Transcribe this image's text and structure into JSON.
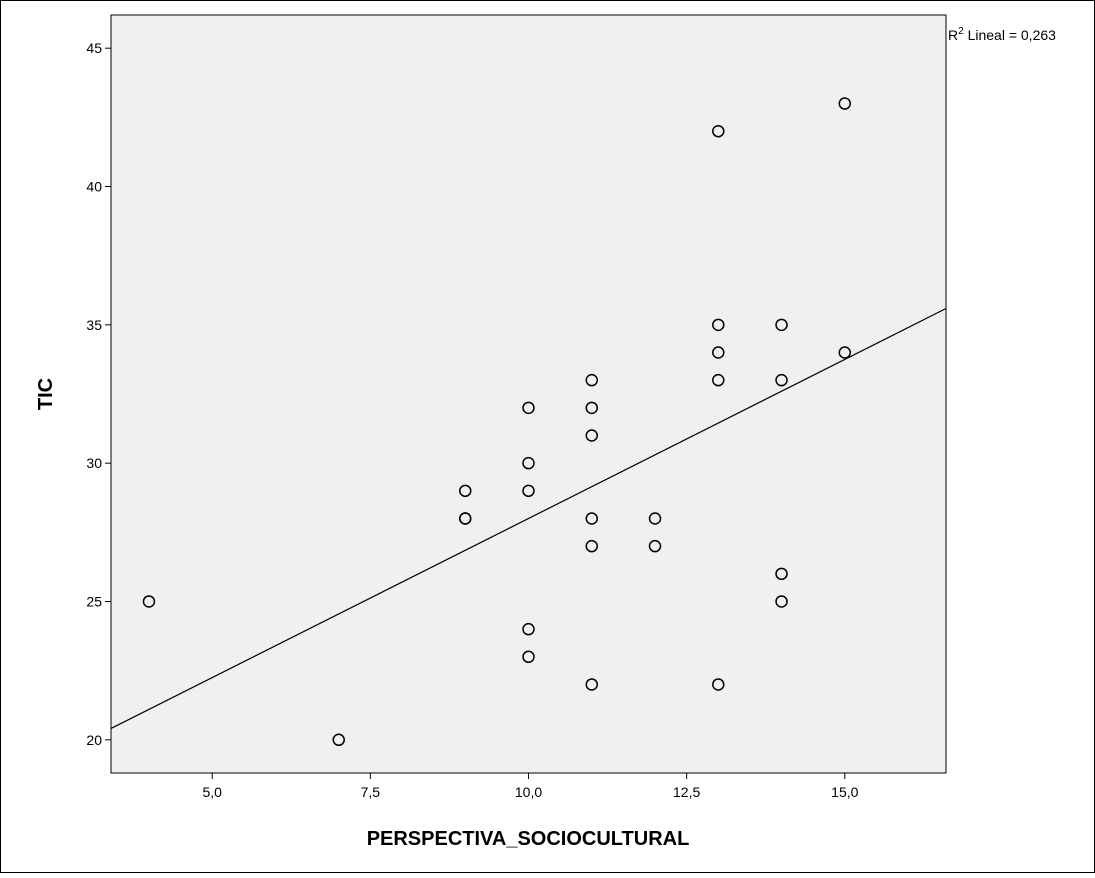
{
  "chart_data": {
    "type": "scatter",
    "title": "",
    "xlabel": "PERSPECTIVA_SOCIOCULTURAL",
    "ylabel": "TIC",
    "xlim": [
      3.4,
      16.6
    ],
    "ylim": [
      18.8,
      46.2
    ],
    "x_ticks": [
      "5,0",
      "7,5",
      "10,0",
      "12,5",
      "15,0"
    ],
    "x_tick_values": [
      5,
      7.5,
      10,
      12.5,
      15
    ],
    "y_ticks": [
      "20",
      "25",
      "30",
      "35",
      "40",
      "45"
    ],
    "y_tick_values": [
      20,
      25,
      30,
      35,
      40,
      45
    ],
    "grid": false,
    "legend": "none",
    "plot_background": "#f0f0f0",
    "marker_color": "#000000",
    "line_color": "#000000",
    "points": [
      {
        "x": 4,
        "y": 25
      },
      {
        "x": 7,
        "y": 20
      },
      {
        "x": 9,
        "y": 29
      },
      {
        "x": 9,
        "y": 28
      },
      {
        "x": 9,
        "y": 28
      },
      {
        "x": 10,
        "y": 32
      },
      {
        "x": 10,
        "y": 30
      },
      {
        "x": 10,
        "y": 29
      },
      {
        "x": 10,
        "y": 24
      },
      {
        "x": 10,
        "y": 23
      },
      {
        "x": 11,
        "y": 33
      },
      {
        "x": 11,
        "y": 32
      },
      {
        "x": 11,
        "y": 31
      },
      {
        "x": 11,
        "y": 28
      },
      {
        "x": 11,
        "y": 27
      },
      {
        "x": 11,
        "y": 22
      },
      {
        "x": 12,
        "y": 28
      },
      {
        "x": 12,
        "y": 27
      },
      {
        "x": 13,
        "y": 42
      },
      {
        "x": 13,
        "y": 35
      },
      {
        "x": 13,
        "y": 34
      },
      {
        "x": 13,
        "y": 33
      },
      {
        "x": 13,
        "y": 22
      },
      {
        "x": 14,
        "y": 35
      },
      {
        "x": 14,
        "y": 33
      },
      {
        "x": 14,
        "y": 26
      },
      {
        "x": 14,
        "y": 25
      },
      {
        "x": 15,
        "y": 43
      },
      {
        "x": 15,
        "y": 34
      }
    ],
    "fit_line": {
      "type": "linear",
      "intercept": 16.5,
      "slope": 1.15,
      "r2_label_prefix": "R",
      "r2_label_sup": "2",
      "r2_label_text": " Lineal = 0,263"
    }
  }
}
